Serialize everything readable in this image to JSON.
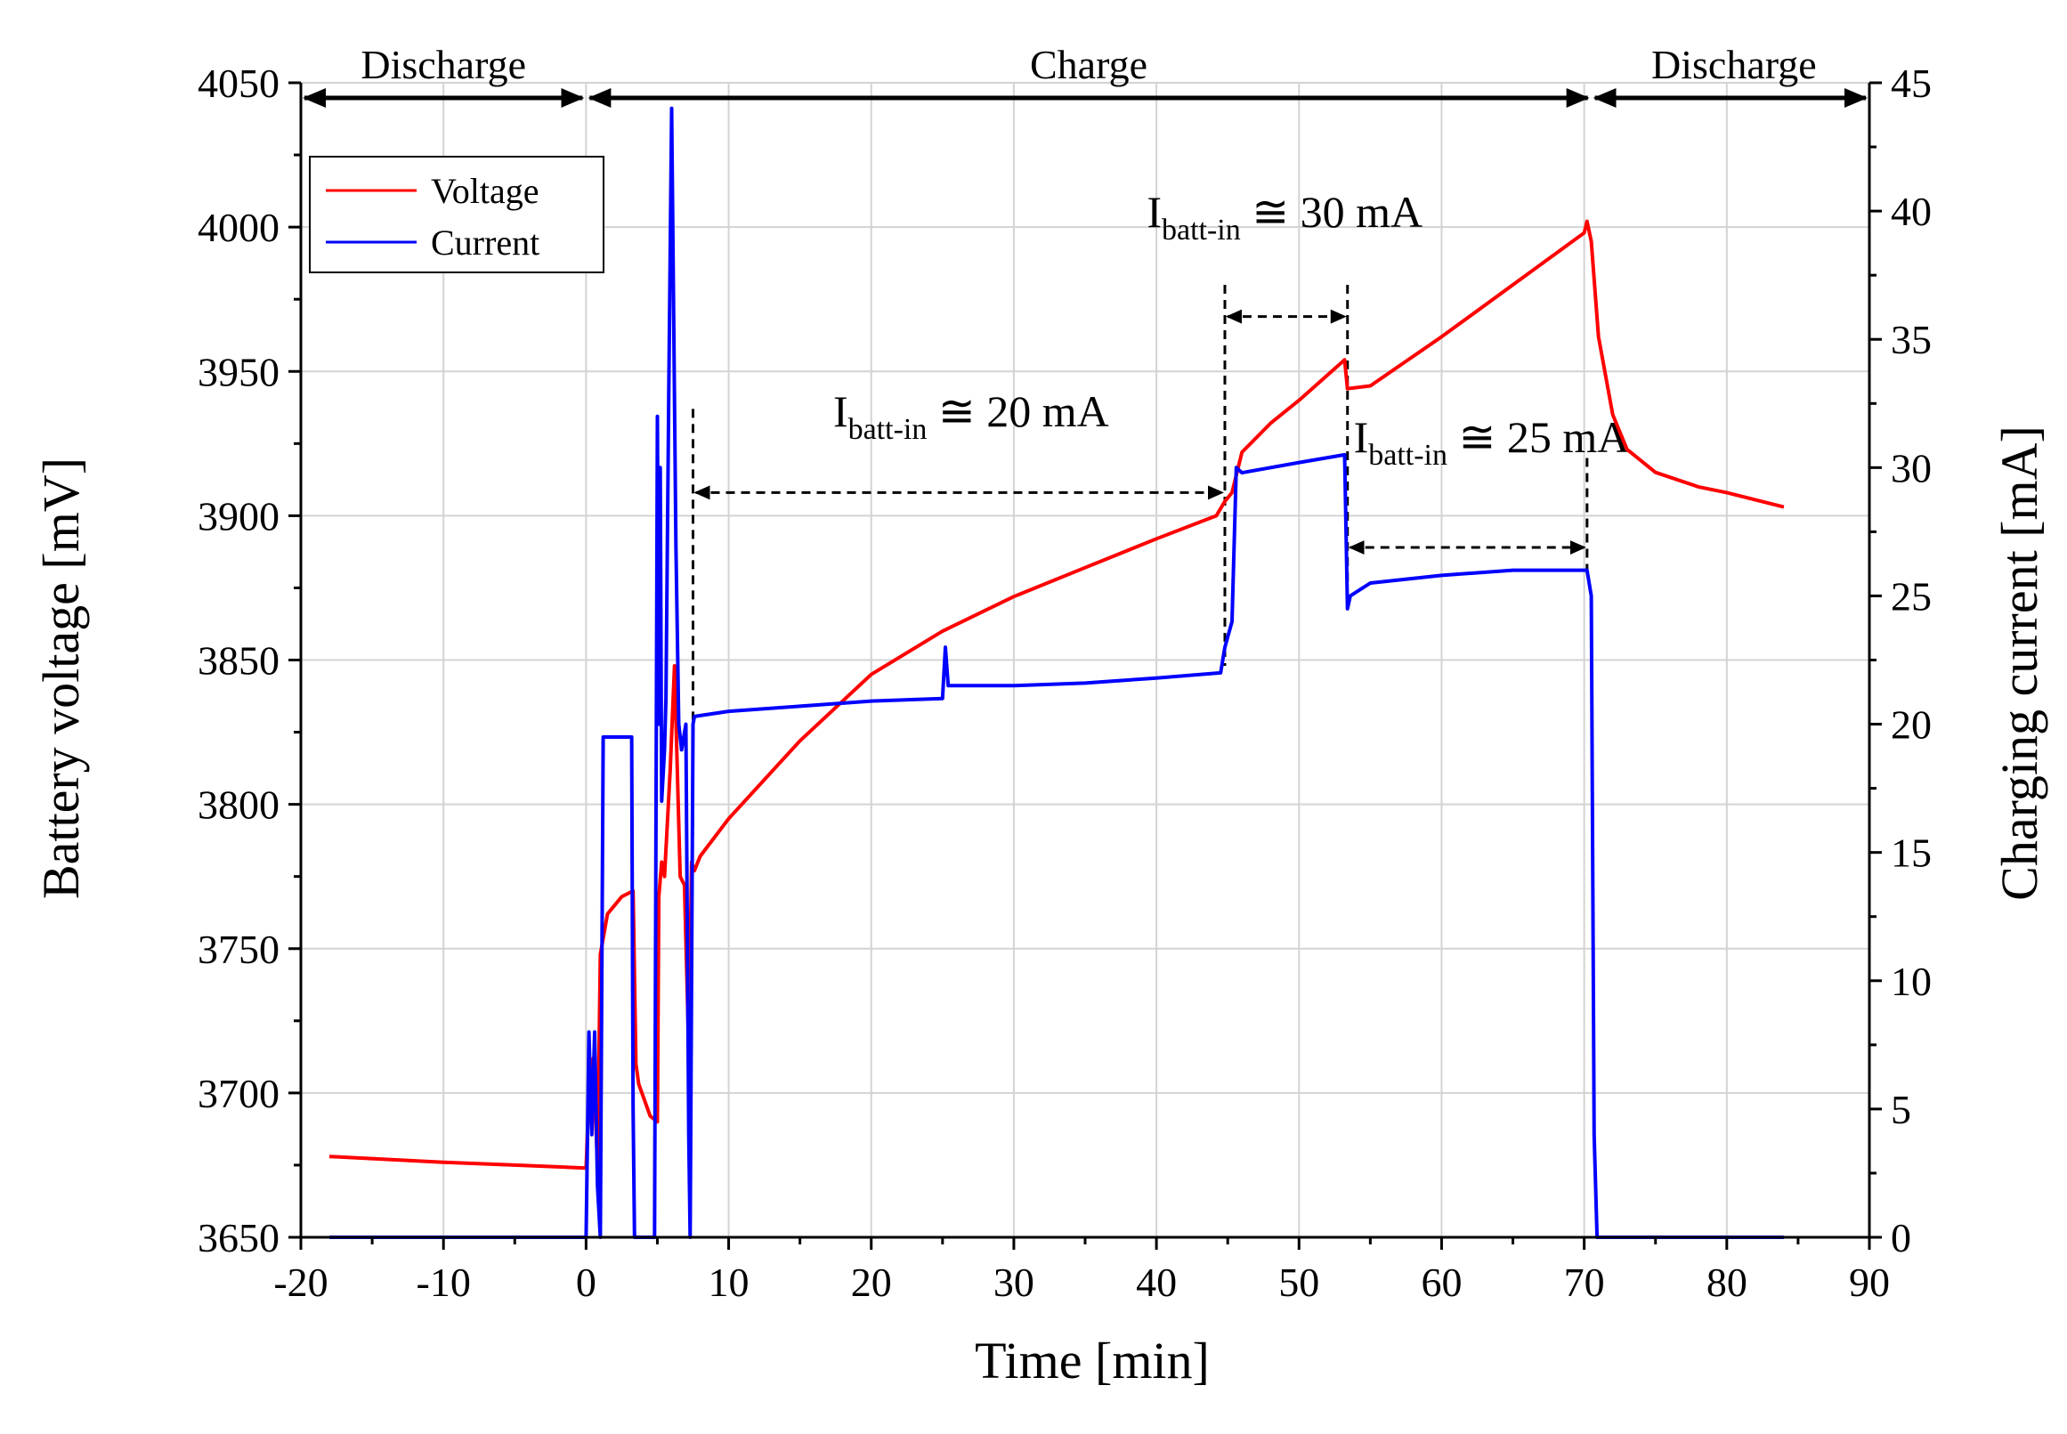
{
  "chart_data": {
    "type": "line",
    "xlabel": "Time [min]",
    "ylabel": "Battery voltage [mV]",
    "y2label": "Charging current [mA]",
    "xlim": [
      -20,
      90
    ],
    "ylim": [
      3650,
      4050
    ],
    "y2lim": [
      0,
      45
    ],
    "xticks": [
      -20,
      -10,
      0,
      10,
      20,
      30,
      40,
      50,
      60,
      70,
      80,
      90
    ],
    "yticks": [
      3650,
      3700,
      3750,
      3800,
      3850,
      3900,
      3950,
      4000,
      4050
    ],
    "y2ticks": [
      0,
      5,
      10,
      15,
      20,
      25,
      30,
      35,
      40,
      45
    ],
    "grid": true,
    "legend": {
      "position": "top-left",
      "entries": [
        "Voltage",
        "Current"
      ]
    },
    "phases": [
      {
        "label": "Discharge",
        "from": -20,
        "to": 0
      },
      {
        "label": "Charge",
        "from": 0,
        "to": 70.5
      },
      {
        "label": "Discharge",
        "from": 70.5,
        "to": 90
      }
    ],
    "annotations": [
      {
        "main": "I",
        "sub": "batt-in",
        "text": " ≅ 20 mA",
        "from": 7.5,
        "to": 44.8,
        "x": 27,
        "y": 3931
      },
      {
        "main": "I",
        "sub": "batt-in",
        "text": " ≅ 30 mA",
        "from": 44.8,
        "to": 53.4,
        "x": 49,
        "y": 4000
      },
      {
        "main": "I",
        "sub": "batt-in",
        "text": " ≅ 25 mA",
        "from": 53.4,
        "to": 70.2,
        "x": 63.5,
        "y": 3922
      }
    ],
    "series": [
      {
        "name": "Voltage",
        "axis": "left",
        "color": "#ff0000",
        "x": [
          -18,
          -10,
          -5,
          0,
          0.2,
          0.5,
          0.8,
          1.0,
          1.5,
          2.5,
          3.3,
          3.5,
          3.7,
          4.5,
          5.0,
          5.1,
          5.3,
          5.5,
          5.9,
          6.2,
          6.6,
          6.9,
          7.2,
          7.4,
          7.6,
          8,
          10,
          15,
          20,
          25,
          30,
          35,
          40,
          44.2,
          44.8,
          45.3,
          46,
          48,
          50,
          53.2,
          53.4,
          55,
          60,
          65,
          70,
          70.2,
          70.5,
          71,
          72,
          73,
          75,
          78,
          80,
          84
        ],
        "y": [
          3678,
          3676,
          3675,
          3674,
          3700,
          3712,
          3675,
          3748,
          3762,
          3768,
          3770,
          3710,
          3703,
          3692,
          3690,
          3768,
          3780,
          3775,
          3812,
          3848,
          3775,
          3772,
          3715,
          3780,
          3777,
          3782,
          3795,
          3822,
          3845,
          3860,
          3872,
          3882,
          3892,
          3900,
          3905,
          3908,
          3922,
          3932,
          3940,
          3954,
          3944,
          3945,
          3962,
          3980,
          3998,
          4002,
          3995,
          3962,
          3935,
          3923,
          3915,
          3910,
          3908,
          3903
        ]
      },
      {
        "name": "Current",
        "axis": "right",
        "color": "#0000ff",
        "x": [
          -18,
          -15,
          -12,
          -9,
          -6,
          -3,
          0,
          0.2,
          0.4,
          0.6,
          0.8,
          1.0,
          1.2,
          3.2,
          3.3,
          3.4,
          4.8,
          5.0,
          5.1,
          5.2,
          5.3,
          5.5,
          5.6,
          5.8,
          6.0,
          6.3,
          6.5,
          6.7,
          7.0,
          7.2,
          7.3,
          7.5,
          7.6,
          10,
          15,
          20,
          25,
          25.2,
          25.4,
          30,
          35,
          40,
          44.5,
          44.8,
          45.3,
          45.6,
          46,
          50,
          53.2,
          53.4,
          53.6,
          55,
          60,
          65,
          70.2,
          70.5,
          70.7,
          70.9,
          75,
          80,
          84
        ],
        "y": [
          0,
          0,
          0,
          0,
          0,
          0,
          0,
          8,
          4,
          8,
          2,
          0,
          19.5,
          19.5,
          5,
          0,
          0,
          32,
          20,
          30,
          17,
          19,
          21,
          33,
          44,
          27,
          20,
          19,
          20,
          4,
          0,
          20,
          20.3,
          20.5,
          20.7,
          20.9,
          21,
          23,
          21.5,
          21.5,
          21.6,
          21.8,
          22,
          23,
          24,
          30,
          29.8,
          30.2,
          30.5,
          24.5,
          25,
          25.5,
          25.8,
          26,
          26,
          25,
          4,
          0,
          0,
          0,
          0
        ]
      }
    ]
  }
}
